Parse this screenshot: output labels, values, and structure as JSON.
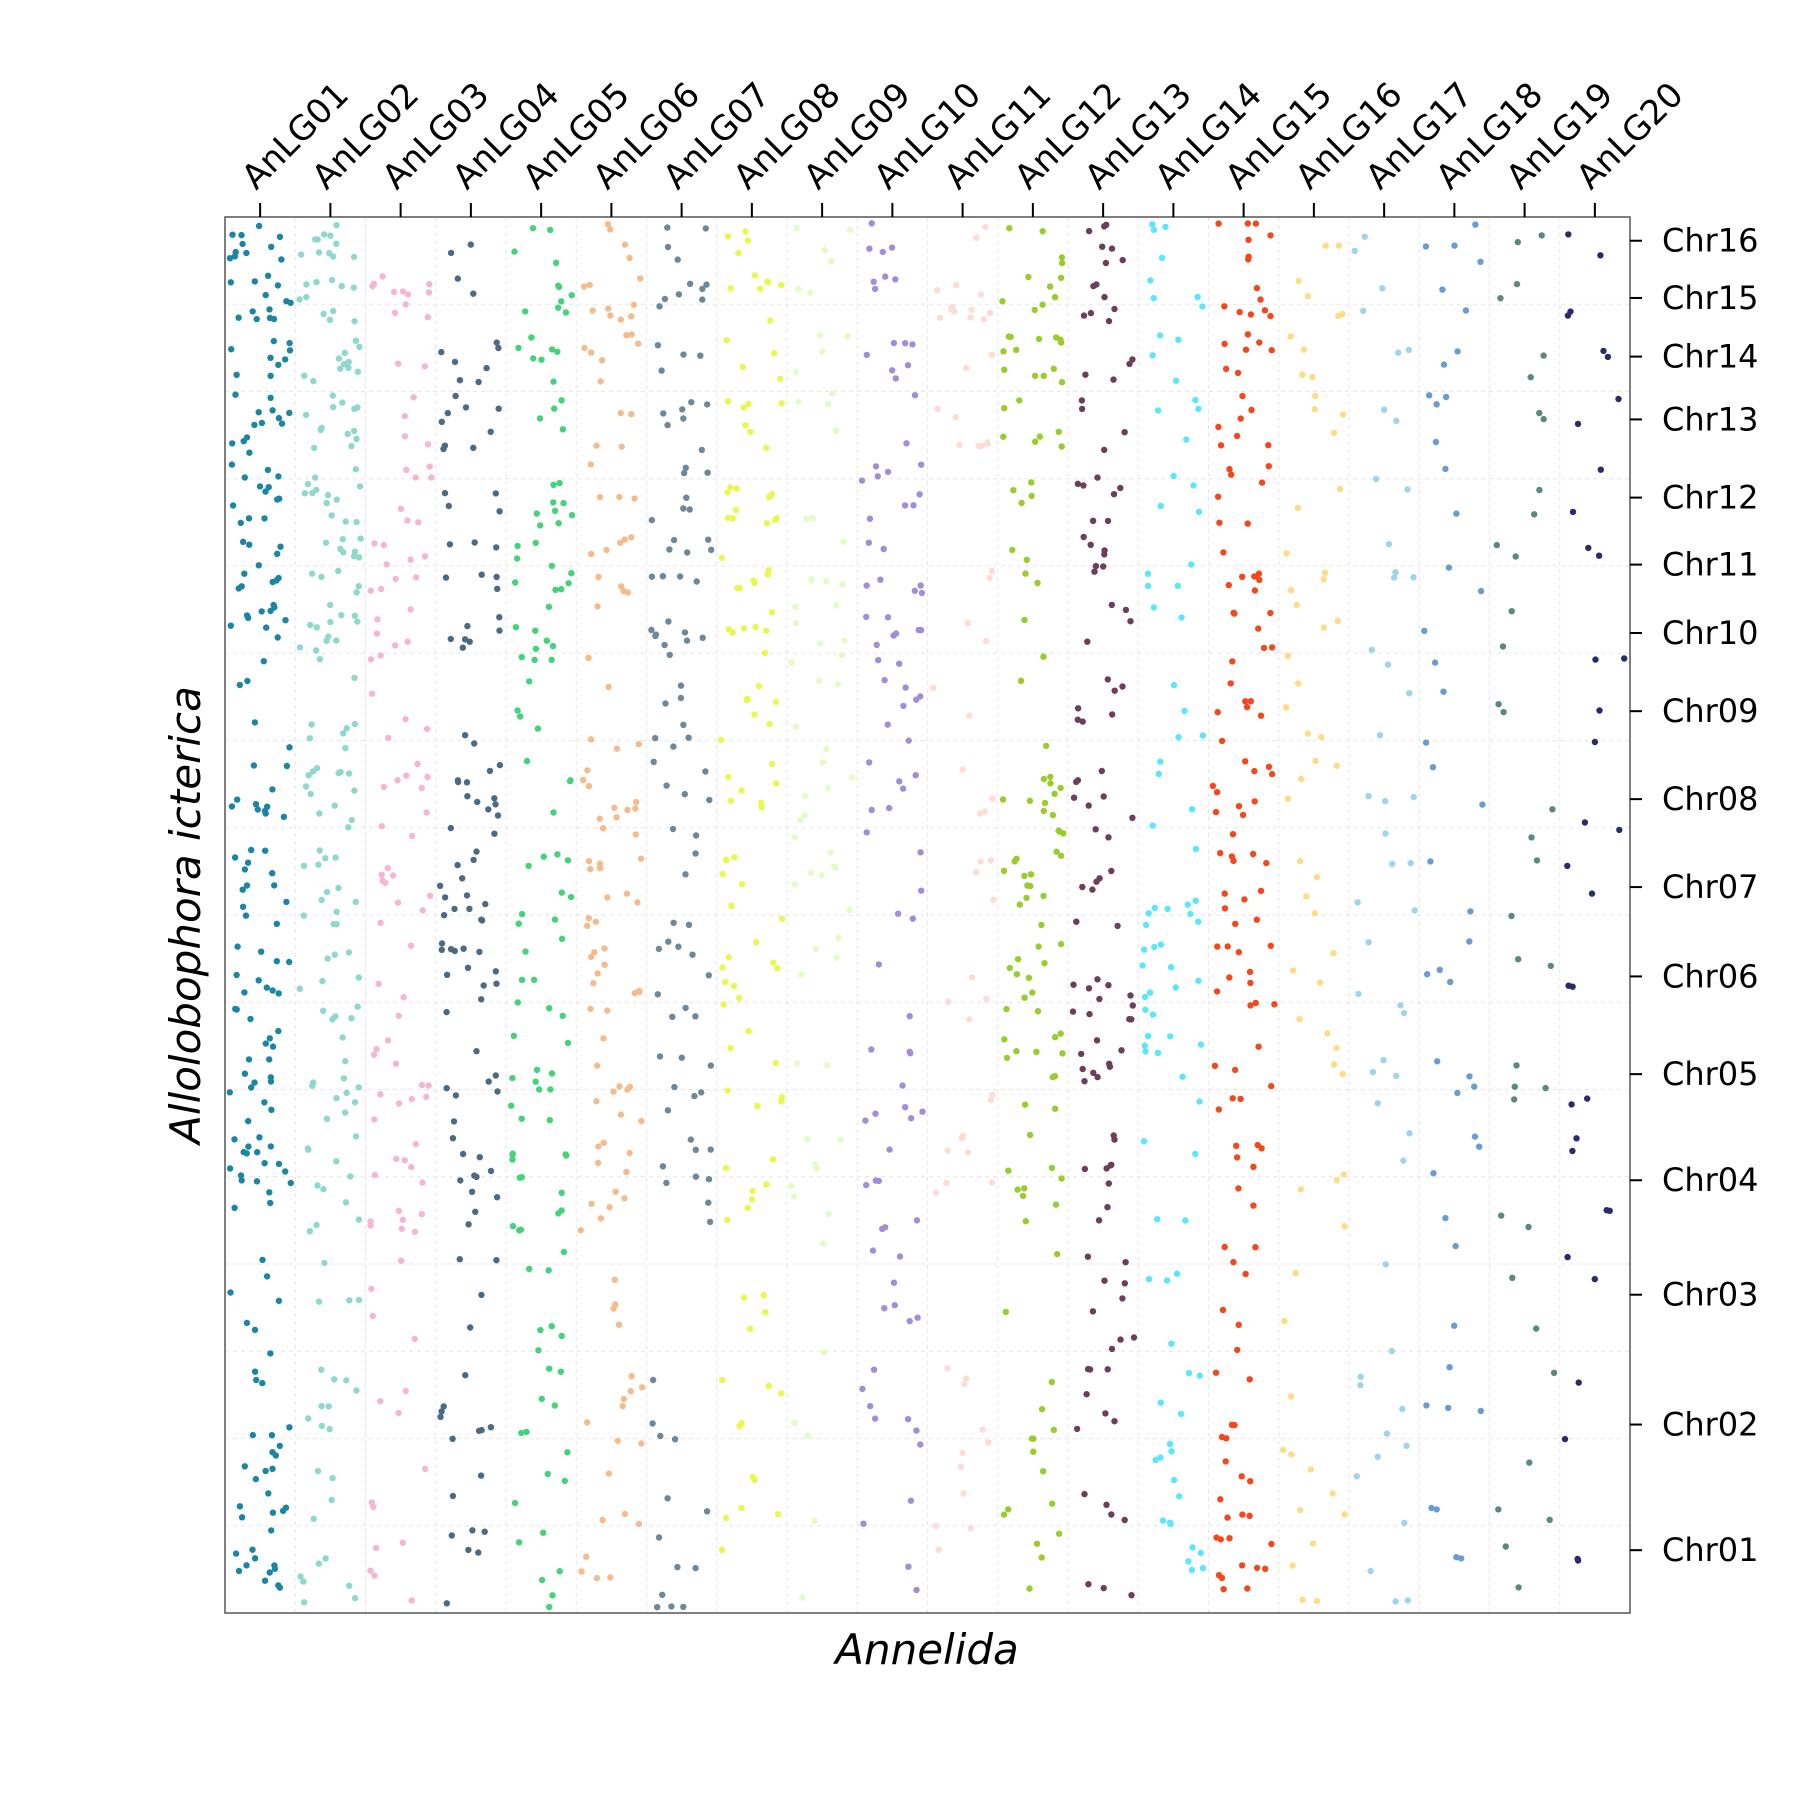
{
  "chart_data": {
    "type": "scatter",
    "xlabel": "Annelida",
    "ylabel": "Allolobophora icterica",
    "x_categories": [
      "AnLG01",
      "AnLG02",
      "AnLG03",
      "AnLG04",
      "AnLG05",
      "AnLG06",
      "AnLG07",
      "AnLG08",
      "AnLG09",
      "AnLG10",
      "AnLG11",
      "AnLG12",
      "AnLG13",
      "AnLG14",
      "AnLG15",
      "AnLG16",
      "AnLG17",
      "AnLG18",
      "AnLG19",
      "AnLG20"
    ],
    "y_categories": [
      "Chr01",
      "Chr02",
      "Chr03",
      "Chr04",
      "Chr05",
      "Chr06",
      "Chr07",
      "Chr08",
      "Chr09",
      "Chr10",
      "Chr11",
      "Chr12",
      "Chr13",
      "Chr14",
      "Chr15",
      "Chr16"
    ],
    "y_tick_values": [
      0.045,
      0.135,
      0.228,
      0.31,
      0.386,
      0.456,
      0.52,
      0.583,
      0.646,
      0.702,
      0.751,
      0.799,
      0.855,
      0.9,
      0.942,
      0.983
    ],
    "x_tick_values": [
      0.025,
      0.075,
      0.125,
      0.175,
      0.225,
      0.275,
      0.325,
      0.375,
      0.425,
      0.475,
      0.525,
      0.575,
      0.625,
      0.675,
      0.725,
      0.775,
      0.825,
      0.875,
      0.925,
      0.975
    ],
    "colors": [
      "#1b86a4",
      "#8ed8cc",
      "#f4b6d2",
      "#4d6a85",
      "#44d27a",
      "#f4bc8c",
      "#6e8799",
      "#e8f84c",
      "#e4fbc8",
      "#a28ed8",
      "#fcdcd4",
      "#9acc2c",
      "#6c3e5a",
      "#5ce6fc",
      "#f4481c",
      "#fcdc84",
      "#a0d4e8",
      "#6a9cd4",
      "#5c8a78",
      "#2a2c6a"
    ],
    "grid": true,
    "legend": "none",
    "xlim": [
      0,
      1
    ],
    "ylim": [
      0,
      1
    ],
    "series_note": "Each column AnLGnn is drawn as a cloud of points in its own color at the listed y (chromosome) bands.",
    "density": [
      [
        8,
        6,
        3,
        8,
        7,
        6,
        6,
        5,
        2,
        5,
        5,
        6,
        6,
        4,
        6,
        5
      ],
      [
        4,
        5,
        2,
        5,
        5,
        5,
        6,
        6,
        3,
        6,
        6,
        6,
        6,
        5,
        5,
        5
      ],
      [
        3,
        2,
        2,
        6,
        5,
        2,
        4,
        4,
        2,
        3,
        4,
        3,
        2,
        1,
        5,
        0
      ],
      [
        3,
        4,
        2,
        5,
        3,
        6,
        6,
        6,
        1,
        3,
        3,
        2,
        4,
        3,
        1,
        1
      ],
      [
        3,
        4,
        3,
        6,
        5,
        3,
        4,
        2,
        2,
        4,
        4,
        4,
        2,
        3,
        3,
        2
      ],
      [
        3,
        4,
        2,
        5,
        4,
        5,
        5,
        5,
        2,
        1,
        4,
        2,
        2,
        3,
        4,
        2
      ],
      [
        4,
        2,
        0,
        4,
        3,
        4,
        2,
        3,
        3,
        4,
        4,
        3,
        3,
        2,
        3,
        2
      ],
      [
        2,
        3,
        2,
        3,
        3,
        4,
        3,
        3,
        3,
        3,
        3,
        5,
        3,
        2,
        3,
        2
      ],
      [
        1,
        1,
        1,
        3,
        1,
        2,
        3,
        3,
        2,
        3,
        2,
        1,
        2,
        2,
        1,
        2
      ],
      [
        2,
        3,
        3,
        3,
        4,
        1,
        2,
        3,
        3,
        4,
        3,
        4,
        1,
        3,
        2,
        2
      ],
      [
        2,
        3,
        0,
        3,
        1,
        2,
        2,
        2,
        1,
        1,
        1,
        0,
        3,
        1,
        5,
        1
      ],
      [
        3,
        3,
        1,
        4,
        5,
        5,
        6,
        6,
        1,
        1,
        2,
        2,
        3,
        6,
        3,
        2
      ],
      [
        3,
        3,
        4,
        4,
        4,
        5,
        3,
        4,
        3,
        2,
        3,
        3,
        2,
        2,
        3,
        3
      ],
      [
        4,
        4,
        2,
        2,
        4,
        5,
        4,
        2,
        2,
        1,
        2,
        2,
        2,
        2,
        2,
        2
      ],
      [
        7,
        4,
        3,
        3,
        3,
        5,
        5,
        5,
        3,
        3,
        3,
        3,
        3,
        3,
        3,
        3
      ],
      [
        3,
        2,
        1,
        2,
        2,
        2,
        2,
        2,
        2,
        2,
        2,
        1,
        2,
        2,
        2,
        1
      ],
      [
        2,
        3,
        1,
        1,
        2,
        2,
        2,
        2,
        1,
        1,
        2,
        1,
        1,
        1,
        1,
        1
      ],
      [
        2,
        2,
        1,
        2,
        2,
        2,
        1,
        1,
        1,
        1,
        1,
        1,
        2,
        1,
        1,
        2
      ],
      [
        2,
        1,
        1,
        1,
        2,
        1,
        1,
        1,
        1,
        1,
        1,
        1,
        1,
        1,
        1,
        1
      ],
      [
        1,
        1,
        1,
        2,
        1,
        1,
        1,
        1,
        1,
        1,
        1,
        1,
        1,
        1,
        1,
        1
      ]
    ]
  }
}
